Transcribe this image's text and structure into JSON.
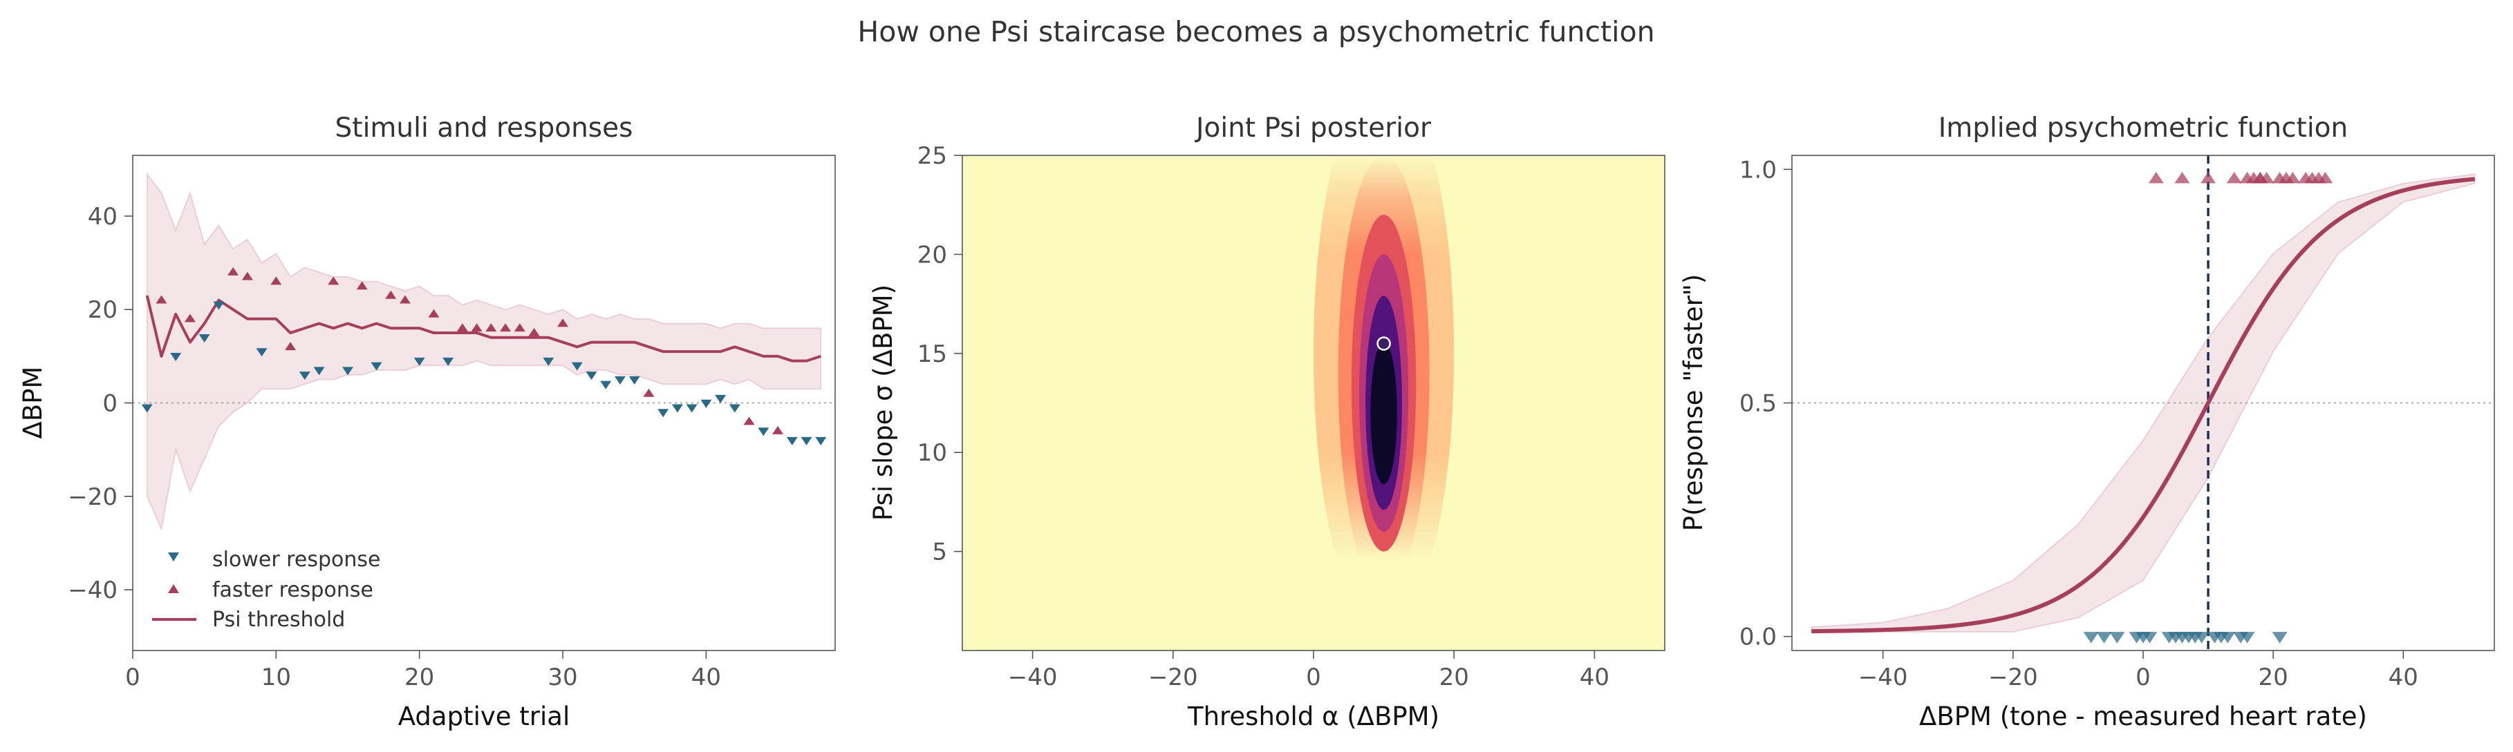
{
  "suptitle": "How one Psi staircase becomes a psychometric function",
  "colors": {
    "faster": "#a63f5c",
    "slower": "#2b6a86",
    "band": "#ecd3da",
    "threshold_line": "#1e2f58",
    "ref_line": "#a8a8a8",
    "axis": "#555555",
    "tick_text": "#555555",
    "title_text": "#333333"
  },
  "chart_data": [
    {
      "type": "scatter",
      "title": "Stimuli and responses",
      "xlabel": "Adaptive trial",
      "ylabel": "ΔBPM",
      "xlim": [
        0,
        49
      ],
      "ylim": [
        -53,
        53
      ],
      "xticks": [
        0,
        10,
        20,
        30,
        40
      ],
      "yticks": [
        -40,
        -20,
        0,
        20,
        40
      ],
      "ytick_labels": [
        "−40",
        "−20",
        "0",
        "20",
        "40"
      ],
      "hline": 0,
      "legend_position": "lower-left",
      "legend": [
        "slower response",
        "faster response",
        "Psi threshold"
      ],
      "trials": [
        1,
        2,
        3,
        4,
        5,
        6,
        7,
        8,
        9,
        10,
        11,
        12,
        13,
        14,
        15,
        16,
        17,
        18,
        19,
        20,
        21,
        22,
        23,
        24,
        25,
        26,
        27,
        28,
        29,
        30,
        31,
        32,
        33,
        34,
        35,
        36,
        37,
        38,
        39,
        40,
        41,
        42,
        43,
        44,
        45,
        46,
        47,
        48
      ],
      "stimulus": [
        -1,
        22,
        10,
        18,
        14,
        21,
        28,
        27,
        11,
        26,
        12,
        6,
        7,
        26,
        7,
        25,
        8,
        23,
        22,
        9,
        19,
        9,
        16,
        16,
        16,
        16,
        16,
        15,
        9,
        17,
        8,
        6,
        4,
        5,
        5,
        2,
        -2,
        -1,
        -1,
        0,
        1,
        -1,
        -4,
        -6,
        -6,
        -8,
        -8,
        -8
      ],
      "response": [
        "slower",
        "faster",
        "slower",
        "faster",
        "slower",
        "slower",
        "faster",
        "faster",
        "slower",
        "faster",
        "faster",
        "slower",
        "slower",
        "faster",
        "slower",
        "faster",
        "slower",
        "faster",
        "faster",
        "slower",
        "faster",
        "slower",
        "faster",
        "faster",
        "faster",
        "faster",
        "faster",
        "faster",
        "slower",
        "faster",
        "slower",
        "slower",
        "slower",
        "slower",
        "slower",
        "faster",
        "slower",
        "slower",
        "slower",
        "slower",
        "slower",
        "slower",
        "faster",
        "slower",
        "faster",
        "slower",
        "slower",
        "slower"
      ],
      "threshold": [
        23,
        10,
        19,
        13,
        17,
        22,
        20,
        18,
        18,
        18,
        15,
        16,
        17,
        16,
        17,
        16,
        17,
        16,
        16,
        16,
        15,
        15,
        15,
        15,
        14,
        14,
        14,
        14,
        14,
        13,
        12,
        13,
        13,
        13,
        13,
        12,
        11,
        11,
        11,
        11,
        11,
        12,
        11,
        10,
        10,
        9,
        9,
        10
      ],
      "band_upper": [
        49,
        45,
        37,
        45,
        34,
        38,
        33,
        35,
        30,
        32,
        27,
        29,
        28,
        27,
        27,
        26,
        26,
        25,
        24,
        25,
        23,
        23,
        21,
        22,
        21,
        20,
        21,
        20,
        19,
        20,
        18,
        19,
        18,
        19,
        18,
        18,
        17,
        17,
        17,
        17,
        16,
        17,
        17,
        16,
        16,
        16,
        16,
        16
      ],
      "band_lower": [
        -20,
        -27,
        -10,
        -19,
        -12,
        -5,
        -2,
        0,
        3,
        3,
        3,
        4,
        5,
        5,
        6,
        6,
        7,
        7,
        7,
        8,
        8,
        8,
        8,
        9,
        8,
        8,
        8,
        8,
        8,
        8,
        6,
        7,
        7,
        6,
        6,
        5,
        4,
        4,
        4,
        4,
        5,
        4,
        5,
        3,
        3,
        3,
        3,
        3
      ]
    },
    {
      "type": "heatmap",
      "title": "Joint Psi posterior",
      "xlabel": "Threshold α (ΔBPM)",
      "ylabel": "Psi slope σ (ΔBPM)",
      "xlim": [
        -50,
        50
      ],
      "ylim": [
        0,
        25
      ],
      "xticks": [
        -40,
        -20,
        0,
        20,
        40
      ],
      "xtick_labels": [
        "−40",
        "−20",
        "0",
        "20",
        "40"
      ],
      "yticks": [
        5,
        10,
        15,
        20,
        25
      ],
      "colormap": "magma_r",
      "posterior_mode": {
        "alpha": 10,
        "sigma": 12
      },
      "estimate_point": {
        "alpha": 10,
        "sigma": 15.5
      }
    },
    {
      "type": "line",
      "title": "Implied psychometric function",
      "xlabel": "ΔBPM (tone - measured heart rate)",
      "ylabel": "P(response \"faster\")",
      "xlim": [
        -54,
        54
      ],
      "ylim": [
        -0.03,
        1.03
      ],
      "xticks": [
        -40,
        -20,
        0,
        20,
        40
      ],
      "xtick_labels": [
        "−40",
        "−20",
        "0",
        "20",
        "40"
      ],
      "yticks": [
        0.0,
        0.5,
        1.0
      ],
      "ytick_labels": [
        "0.0",
        "0.5",
        "1.0"
      ],
      "hline": 0.5,
      "threshold_vline": 10,
      "curve": {
        "alpha": 10,
        "sigma": 15.5,
        "lapse": 0.01,
        "x_range": [
          -51,
          51
        ]
      },
      "band": {
        "x": [
          -51,
          -40,
          -30,
          -20,
          -10,
          0,
          10,
          20,
          30,
          40,
          51
        ],
        "upper": [
          0.02,
          0.03,
          0.06,
          0.12,
          0.24,
          0.42,
          0.64,
          0.82,
          0.93,
          0.97,
          0.99
        ],
        "lower": [
          0.01,
          0.01,
          0.01,
          0.01,
          0.04,
          0.12,
          0.34,
          0.61,
          0.82,
          0.93,
          0.97
        ]
      },
      "faster_stimuli": [
        2,
        6,
        10,
        14,
        18,
        21,
        25,
        28,
        16,
        17,
        18,
        19,
        22,
        23,
        26,
        27
      ],
      "slower_stimuli": [
        -8,
        -6,
        -4,
        -1,
        0,
        1,
        4,
        5,
        6,
        7,
        8,
        9,
        11,
        12,
        13,
        15,
        16,
        21
      ]
    }
  ]
}
